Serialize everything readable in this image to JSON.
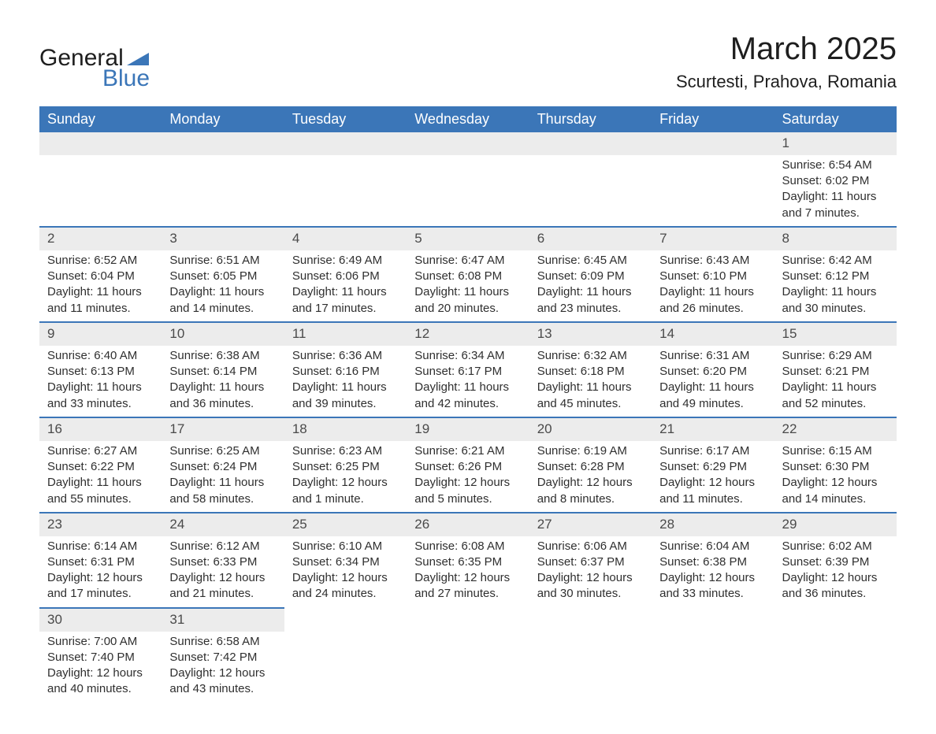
{
  "logo": {
    "text_general": "General",
    "text_blue": "Blue",
    "icon_color": "#3b76b8"
  },
  "header": {
    "month_title": "March 2025",
    "location": "Scurtesti, Prahova, Romania"
  },
  "colors": {
    "header_bg": "#3b76b8",
    "header_text": "#ffffff",
    "daynum_bg": "#ececec",
    "row_border": "#3b76b8",
    "body_text": "#2f2f2f"
  },
  "calendar": {
    "day_headers": [
      "Sunday",
      "Monday",
      "Tuesday",
      "Wednesday",
      "Thursday",
      "Friday",
      "Saturday"
    ],
    "weeks": [
      [
        {
          "empty": true
        },
        {
          "empty": true
        },
        {
          "empty": true
        },
        {
          "empty": true
        },
        {
          "empty": true
        },
        {
          "empty": true
        },
        {
          "day": "1",
          "sunrise": "Sunrise: 6:54 AM",
          "sunset": "Sunset: 6:02 PM",
          "daylight1": "Daylight: 11 hours",
          "daylight2": "and 7 minutes."
        }
      ],
      [
        {
          "day": "2",
          "sunrise": "Sunrise: 6:52 AM",
          "sunset": "Sunset: 6:04 PM",
          "daylight1": "Daylight: 11 hours",
          "daylight2": "and 11 minutes."
        },
        {
          "day": "3",
          "sunrise": "Sunrise: 6:51 AM",
          "sunset": "Sunset: 6:05 PM",
          "daylight1": "Daylight: 11 hours",
          "daylight2": "and 14 minutes."
        },
        {
          "day": "4",
          "sunrise": "Sunrise: 6:49 AM",
          "sunset": "Sunset: 6:06 PM",
          "daylight1": "Daylight: 11 hours",
          "daylight2": "and 17 minutes."
        },
        {
          "day": "5",
          "sunrise": "Sunrise: 6:47 AM",
          "sunset": "Sunset: 6:08 PM",
          "daylight1": "Daylight: 11 hours",
          "daylight2": "and 20 minutes."
        },
        {
          "day": "6",
          "sunrise": "Sunrise: 6:45 AM",
          "sunset": "Sunset: 6:09 PM",
          "daylight1": "Daylight: 11 hours",
          "daylight2": "and 23 minutes."
        },
        {
          "day": "7",
          "sunrise": "Sunrise: 6:43 AM",
          "sunset": "Sunset: 6:10 PM",
          "daylight1": "Daylight: 11 hours",
          "daylight2": "and 26 minutes."
        },
        {
          "day": "8",
          "sunrise": "Sunrise: 6:42 AM",
          "sunset": "Sunset: 6:12 PM",
          "daylight1": "Daylight: 11 hours",
          "daylight2": "and 30 minutes."
        }
      ],
      [
        {
          "day": "9",
          "sunrise": "Sunrise: 6:40 AM",
          "sunset": "Sunset: 6:13 PM",
          "daylight1": "Daylight: 11 hours",
          "daylight2": "and 33 minutes."
        },
        {
          "day": "10",
          "sunrise": "Sunrise: 6:38 AM",
          "sunset": "Sunset: 6:14 PM",
          "daylight1": "Daylight: 11 hours",
          "daylight2": "and 36 minutes."
        },
        {
          "day": "11",
          "sunrise": "Sunrise: 6:36 AM",
          "sunset": "Sunset: 6:16 PM",
          "daylight1": "Daylight: 11 hours",
          "daylight2": "and 39 minutes."
        },
        {
          "day": "12",
          "sunrise": "Sunrise: 6:34 AM",
          "sunset": "Sunset: 6:17 PM",
          "daylight1": "Daylight: 11 hours",
          "daylight2": "and 42 minutes."
        },
        {
          "day": "13",
          "sunrise": "Sunrise: 6:32 AM",
          "sunset": "Sunset: 6:18 PM",
          "daylight1": "Daylight: 11 hours",
          "daylight2": "and 45 minutes."
        },
        {
          "day": "14",
          "sunrise": "Sunrise: 6:31 AM",
          "sunset": "Sunset: 6:20 PM",
          "daylight1": "Daylight: 11 hours",
          "daylight2": "and 49 minutes."
        },
        {
          "day": "15",
          "sunrise": "Sunrise: 6:29 AM",
          "sunset": "Sunset: 6:21 PM",
          "daylight1": "Daylight: 11 hours",
          "daylight2": "and 52 minutes."
        }
      ],
      [
        {
          "day": "16",
          "sunrise": "Sunrise: 6:27 AM",
          "sunset": "Sunset: 6:22 PM",
          "daylight1": "Daylight: 11 hours",
          "daylight2": "and 55 minutes."
        },
        {
          "day": "17",
          "sunrise": "Sunrise: 6:25 AM",
          "sunset": "Sunset: 6:24 PM",
          "daylight1": "Daylight: 11 hours",
          "daylight2": "and 58 minutes."
        },
        {
          "day": "18",
          "sunrise": "Sunrise: 6:23 AM",
          "sunset": "Sunset: 6:25 PM",
          "daylight1": "Daylight: 12 hours",
          "daylight2": "and 1 minute."
        },
        {
          "day": "19",
          "sunrise": "Sunrise: 6:21 AM",
          "sunset": "Sunset: 6:26 PM",
          "daylight1": "Daylight: 12 hours",
          "daylight2": "and 5 minutes."
        },
        {
          "day": "20",
          "sunrise": "Sunrise: 6:19 AM",
          "sunset": "Sunset: 6:28 PM",
          "daylight1": "Daylight: 12 hours",
          "daylight2": "and 8 minutes."
        },
        {
          "day": "21",
          "sunrise": "Sunrise: 6:17 AM",
          "sunset": "Sunset: 6:29 PM",
          "daylight1": "Daylight: 12 hours",
          "daylight2": "and 11 minutes."
        },
        {
          "day": "22",
          "sunrise": "Sunrise: 6:15 AM",
          "sunset": "Sunset: 6:30 PM",
          "daylight1": "Daylight: 12 hours",
          "daylight2": "and 14 minutes."
        }
      ],
      [
        {
          "day": "23",
          "sunrise": "Sunrise: 6:14 AM",
          "sunset": "Sunset: 6:31 PM",
          "daylight1": "Daylight: 12 hours",
          "daylight2": "and 17 minutes."
        },
        {
          "day": "24",
          "sunrise": "Sunrise: 6:12 AM",
          "sunset": "Sunset: 6:33 PM",
          "daylight1": "Daylight: 12 hours",
          "daylight2": "and 21 minutes."
        },
        {
          "day": "25",
          "sunrise": "Sunrise: 6:10 AM",
          "sunset": "Sunset: 6:34 PM",
          "daylight1": "Daylight: 12 hours",
          "daylight2": "and 24 minutes."
        },
        {
          "day": "26",
          "sunrise": "Sunrise: 6:08 AM",
          "sunset": "Sunset: 6:35 PM",
          "daylight1": "Daylight: 12 hours",
          "daylight2": "and 27 minutes."
        },
        {
          "day": "27",
          "sunrise": "Sunrise: 6:06 AM",
          "sunset": "Sunset: 6:37 PM",
          "daylight1": "Daylight: 12 hours",
          "daylight2": "and 30 minutes."
        },
        {
          "day": "28",
          "sunrise": "Sunrise: 6:04 AM",
          "sunset": "Sunset: 6:38 PM",
          "daylight1": "Daylight: 12 hours",
          "daylight2": "and 33 minutes."
        },
        {
          "day": "29",
          "sunrise": "Sunrise: 6:02 AM",
          "sunset": "Sunset: 6:39 PM",
          "daylight1": "Daylight: 12 hours",
          "daylight2": "and 36 minutes."
        }
      ],
      [
        {
          "day": "30",
          "sunrise": "Sunrise: 7:00 AM",
          "sunset": "Sunset: 7:40 PM",
          "daylight1": "Daylight: 12 hours",
          "daylight2": "and 40 minutes."
        },
        {
          "day": "31",
          "sunrise": "Sunrise: 6:58 AM",
          "sunset": "Sunset: 7:42 PM",
          "daylight1": "Daylight: 12 hours",
          "daylight2": "and 43 minutes."
        },
        {
          "empty": true
        },
        {
          "empty": true
        },
        {
          "empty": true
        },
        {
          "empty": true
        },
        {
          "empty": true
        }
      ]
    ]
  }
}
